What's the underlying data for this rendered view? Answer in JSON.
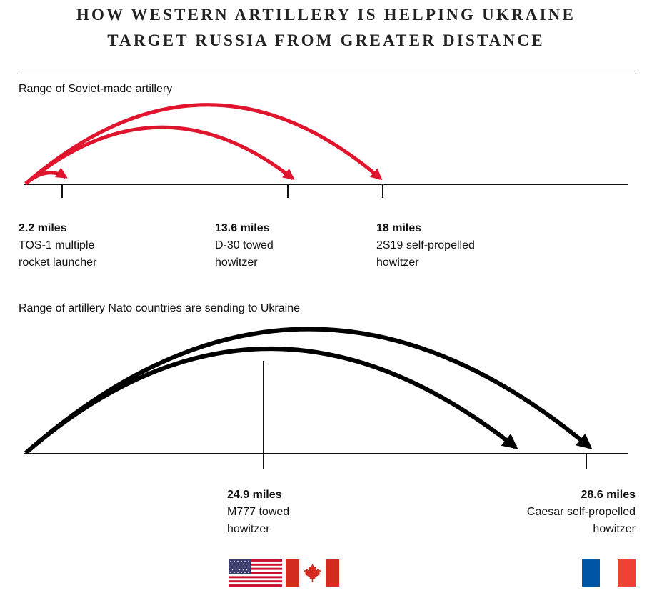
{
  "title": {
    "line1": "HOW WESTERN ARTILLERY IS HELPING UKRAINE",
    "line2": "TARGET RUSSIA FROM GREATER DISTANCE"
  },
  "soviet": {
    "label": "Range of Soviet-made artillery",
    "color": "#e0142d",
    "items": [
      {
        "range": "2.2 miles",
        "name_line1": "TOS-1 multiple",
        "name_line2": "rocket launcher"
      },
      {
        "range": "13.6 miles",
        "name_line1": "D-30 towed",
        "name_line2": "howitzer"
      },
      {
        "range": "18 miles",
        "name_line1": "2S19 self-propelled",
        "name_line2": "howitzer"
      }
    ]
  },
  "nato": {
    "label": "Range of artillery Nato countries are sending to Ukraine",
    "color": "#000000",
    "items": [
      {
        "range": "24.9 miles",
        "name_line1": "M777 towed",
        "name_line2": "howitzer",
        "flags": [
          "us-flag",
          "canada-flag"
        ]
      },
      {
        "range": "28.6 miles",
        "name_line1": "Caesar self-propelled",
        "name_line2": "howitzer",
        "flags": [
          "france-flag"
        ]
      }
    ]
  }
}
